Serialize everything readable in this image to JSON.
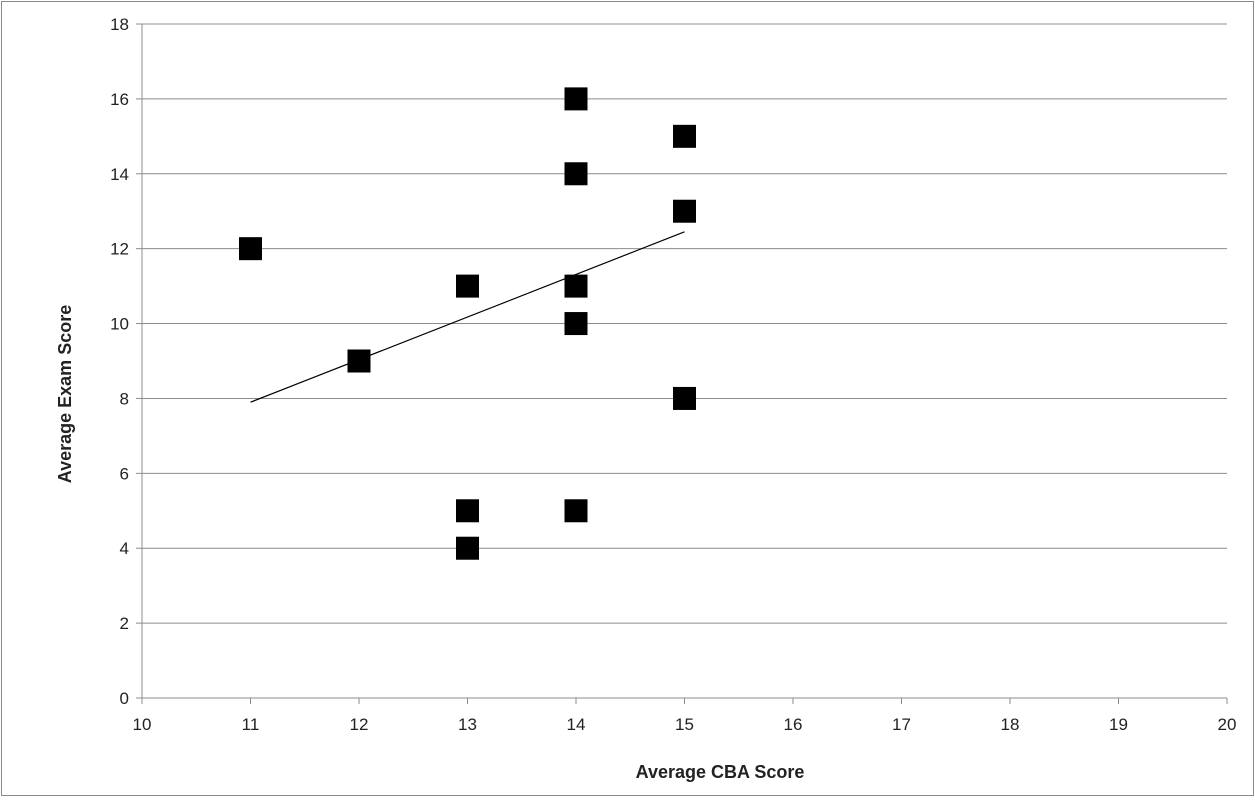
{
  "chart_data": {
    "type": "scatter",
    "title": "",
    "xlabel": "Average CBA Score",
    "ylabel": "Average Exam Score",
    "xlim": [
      10,
      20
    ],
    "ylim": [
      0,
      18
    ],
    "x_ticks": [
      "10",
      "11",
      "12",
      "13",
      "14",
      "15",
      "16",
      "17",
      "18",
      "19",
      "20"
    ],
    "y_ticks": [
      "0",
      "2",
      "4",
      "6",
      "8",
      "10",
      "12",
      "14",
      "16",
      "18"
    ],
    "grid": "horizontal",
    "legend": "none",
    "marker": "square",
    "marker_color": "#000000",
    "points": [
      {
        "x": 11,
        "y": 12
      },
      {
        "x": 12,
        "y": 9
      },
      {
        "x": 13,
        "y": 11
      },
      {
        "x": 13,
        "y": 5
      },
      {
        "x": 13,
        "y": 4
      },
      {
        "x": 14,
        "y": 16
      },
      {
        "x": 14,
        "y": 14
      },
      {
        "x": 14,
        "y": 11
      },
      {
        "x": 14,
        "y": 10
      },
      {
        "x": 14,
        "y": 5
      },
      {
        "x": 15,
        "y": 15
      },
      {
        "x": 15,
        "y": 13
      },
      {
        "x": 15,
        "y": 8
      }
    ],
    "trendline": {
      "x": [
        11,
        15
      ],
      "y": [
        7.9,
        12.45
      ]
    }
  }
}
